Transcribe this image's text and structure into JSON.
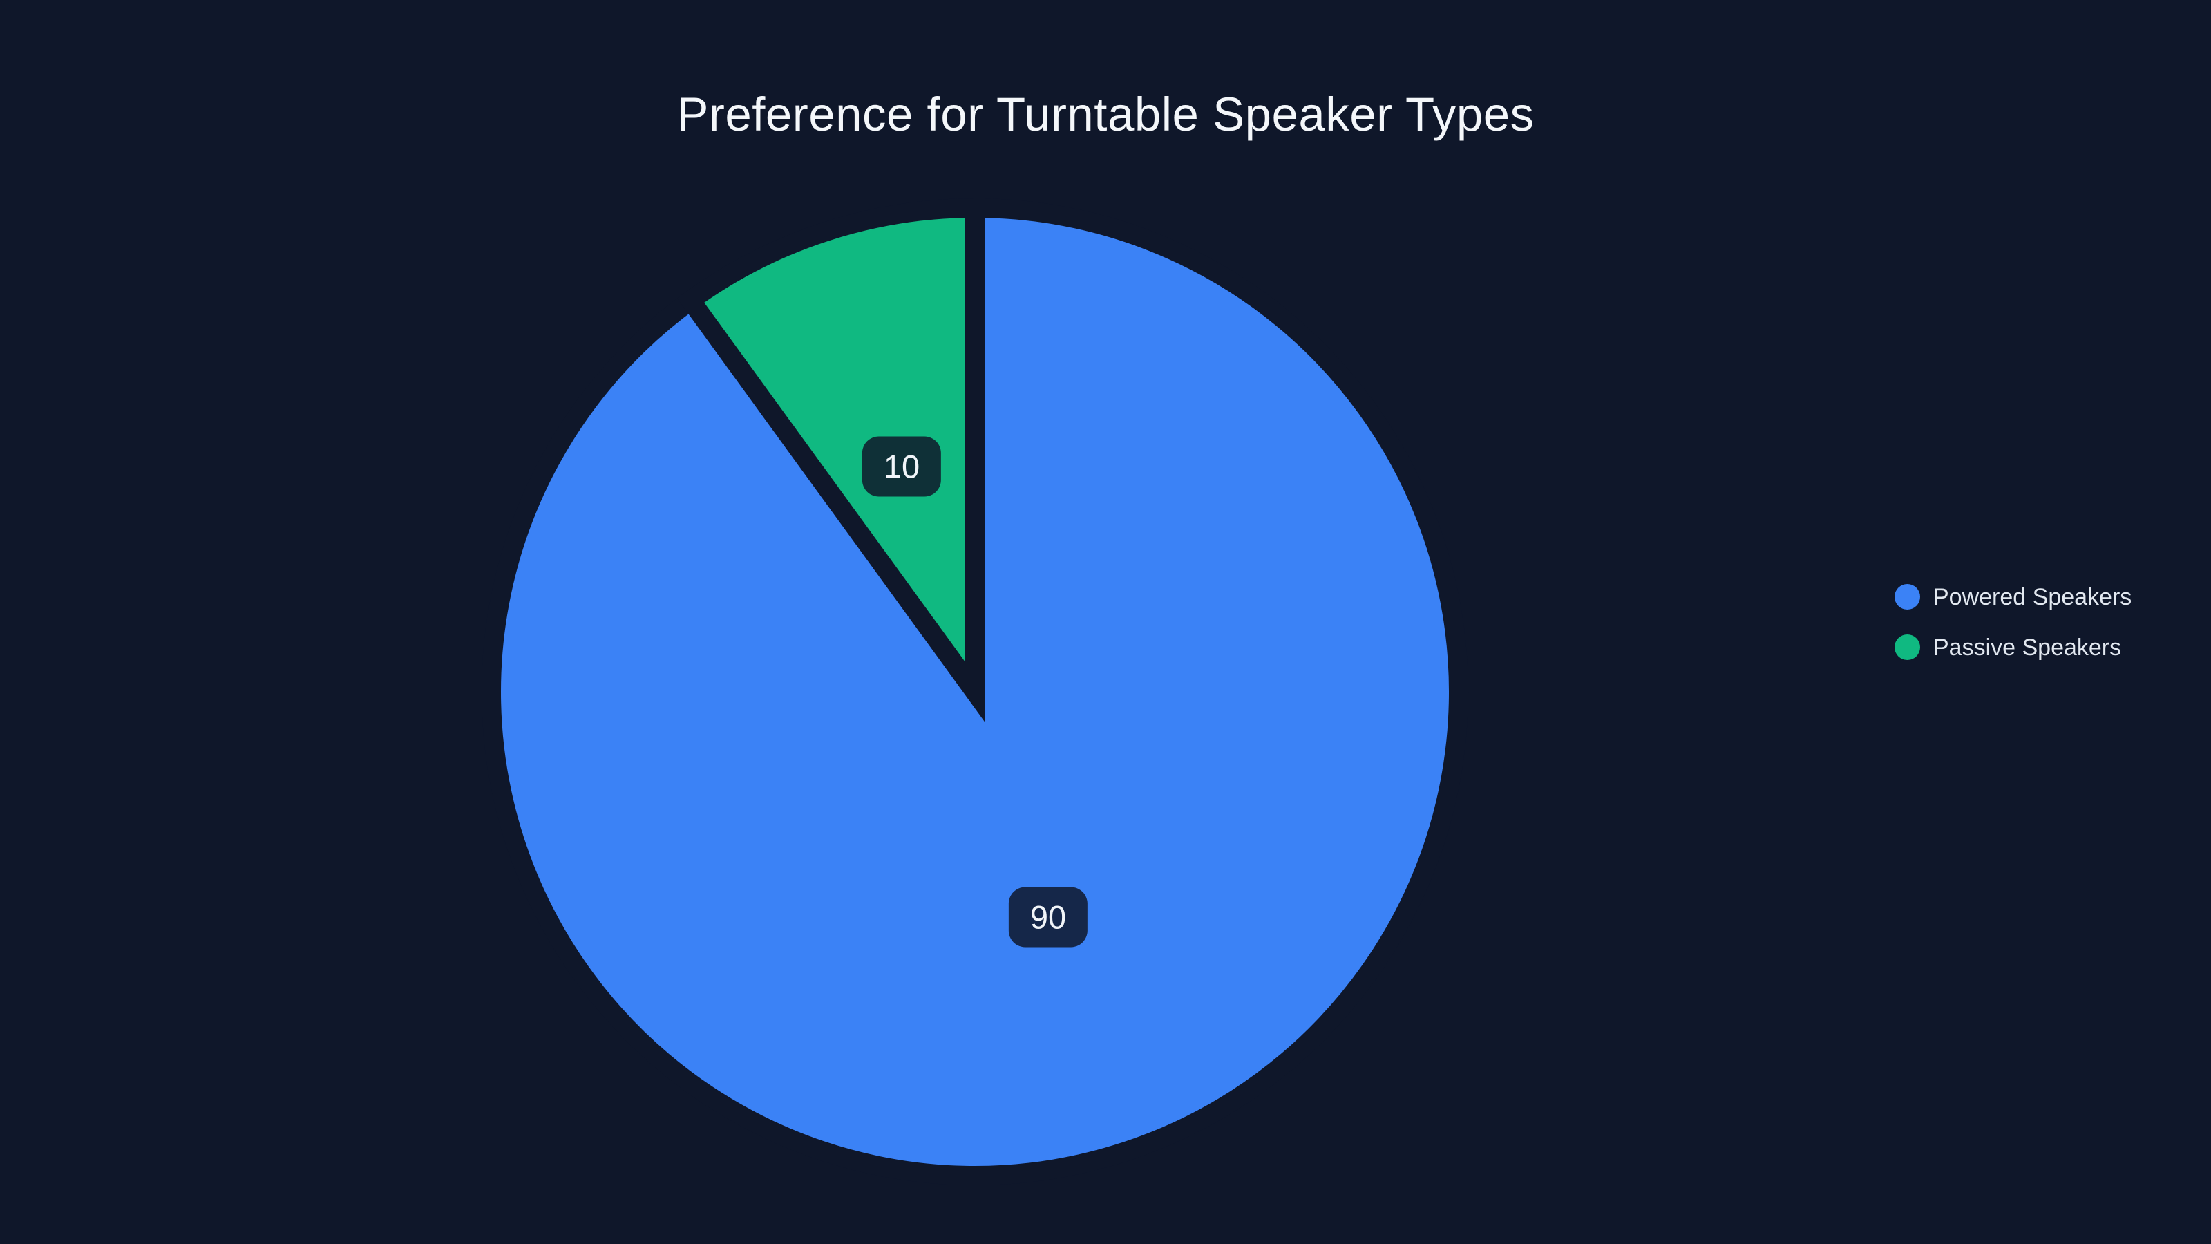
{
  "page": {
    "background_color": "#0f172a"
  },
  "header": {
    "title": "Preference for Turntable Speaker Types",
    "title_color": "#f4f7fa"
  },
  "chart_data": {
    "type": "pie",
    "title": "Preference for Turntable Speaker Types",
    "categories": [
      "Powered Speakers",
      "Passive Speakers"
    ],
    "values": [
      90,
      10
    ],
    "value_labels": [
      "90",
      "10"
    ],
    "colors": [
      "#3b82f6",
      "#10b981"
    ],
    "start_angle_deg": 0,
    "direction": "clockwise",
    "slice_gap_color": "#0f172a",
    "legend_position": "right",
    "data_label_style": "dark rounded badge at half radius"
  },
  "legend": {
    "items": [
      {
        "label": "Powered Speakers",
        "color": "#3b82f6"
      },
      {
        "label": "Passive Speakers",
        "color": "#10b981"
      }
    ]
  },
  "badges": {
    "background": "rgba(15, 23, 42, 0.85)",
    "text_color": "#f1f5f9"
  }
}
